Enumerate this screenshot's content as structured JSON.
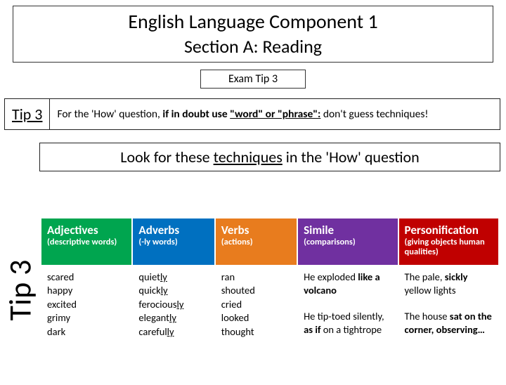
{
  "header": {
    "title": "English Language Component 1",
    "subtitle": "Section A: Reading",
    "exam_tip": "Exam Tip 3"
  },
  "tip_row": {
    "label": "Tip 3",
    "seg_pre": "For the 'How' question, ",
    "seg_bold1": "if in doubt use ",
    "seg_bold_u": "\"word\" or \"phrase\":",
    "seg_post": " don't guess techniques!"
  },
  "look": {
    "pre": "Look for these ",
    "u": "techniques",
    "post": " in the 'How' question"
  },
  "vert_label": "Tip 3",
  "table": {
    "columns": [
      {
        "title": "Adjectives",
        "sub": "(descriptive words)",
        "bg": "#00a54f"
      },
      {
        "title": "Adverbs",
        "sub": "(-ly words)",
        "bg": "#0070c0"
      },
      {
        "title": "Verbs",
        "sub": "(actions)",
        "bg": "#e87c1e"
      },
      {
        "title": "Simile",
        "sub": "(comparisons)",
        "bg": "#7030a0"
      },
      {
        "title": "Personification",
        "sub": "(giving objects human qualities)",
        "bg": "#c00000"
      }
    ],
    "cells": {
      "adj": "scared\nhappy\nexcited\ngrimy\ndark",
      "adv": [
        {
          "t": "quiet",
          "u": "ly"
        },
        {
          "t": "quick",
          "u": "ly"
        },
        {
          "t": "ferocious",
          "u": "ly"
        },
        {
          "t": "elegant",
          "u": "ly"
        },
        {
          "t": "careful",
          "u": "ly"
        }
      ],
      "verbs": "ran\nshouted\ncried\nlooked\nthought",
      "simile1": {
        "pre": "He exploded ",
        "b": "like a volcano"
      },
      "simile2": {
        "pre": "He tip-toed silently, ",
        "b": "as if",
        "post": " on a tightrope"
      },
      "pers1": {
        "pre": "The pale, ",
        "b": "sickly",
        "post": " yellow lights"
      },
      "pers2": {
        "pre": "The house ",
        "b": "sat on the corner, observing…"
      }
    }
  }
}
